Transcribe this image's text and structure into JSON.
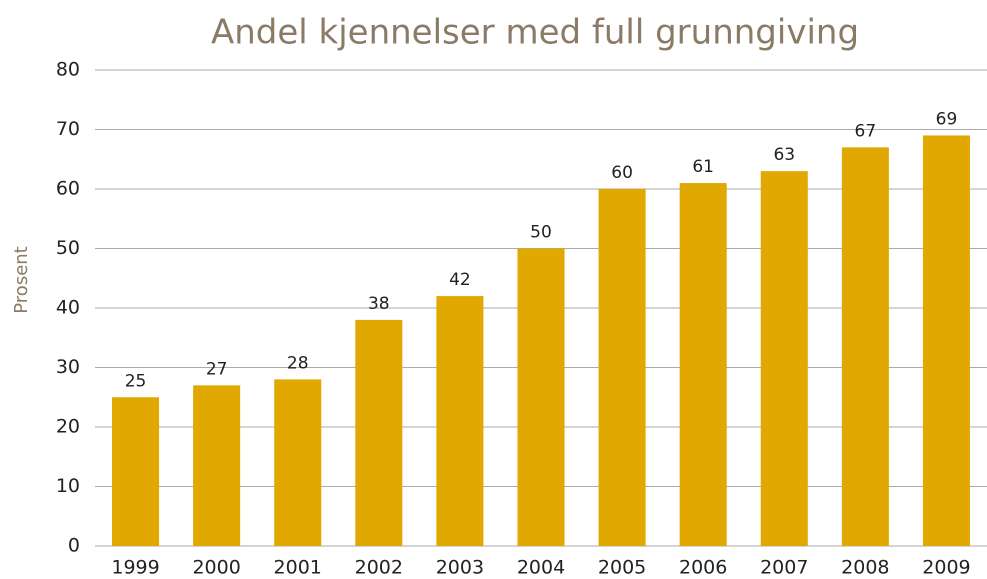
{
  "chart_data": {
    "type": "bar",
    "title": "Andel kjennelser med full grunngiving",
    "y_label": "Prosent",
    "categories": [
      "1999",
      "2000",
      "2001",
      "2002",
      "2003",
      "2004",
      "2005",
      "2006",
      "2007",
      "2008",
      "2009"
    ],
    "values": [
      25,
      27,
      28,
      38,
      42,
      50,
      60,
      61,
      63,
      67,
      69
    ],
    "color": "#e0a800",
    "ylim": [
      0,
      80
    ],
    "yticks": [
      0,
      10,
      20,
      30,
      40,
      50,
      60,
      70,
      80
    ],
    "grid": true
  }
}
